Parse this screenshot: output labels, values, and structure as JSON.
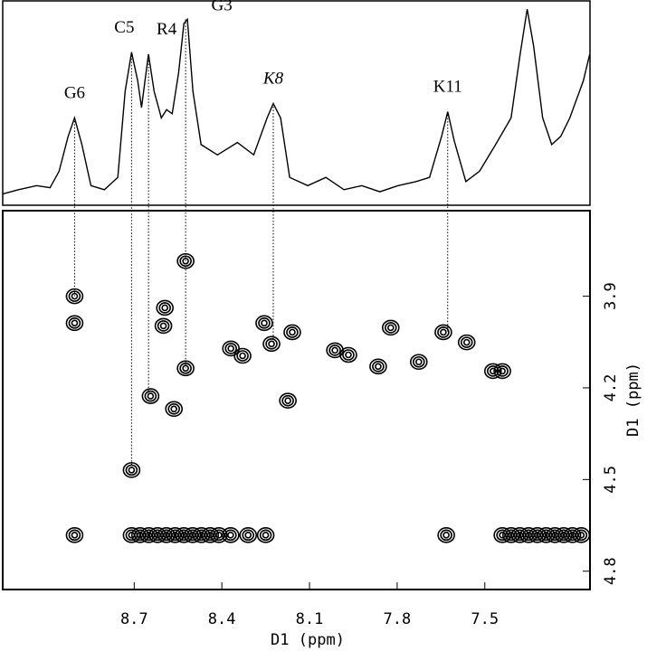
{
  "chart_data": [
    {
      "type": "line",
      "x": [
        9.149,
        9.096,
        9.034,
        8.988,
        8.957,
        8.926,
        8.904,
        8.879,
        8.848,
        8.802,
        8.756,
        8.731,
        8.709,
        8.688,
        8.675,
        8.663,
        8.651,
        8.632,
        8.607,
        8.589,
        8.57,
        8.548,
        8.53,
        8.518,
        8.499,
        8.471,
        8.415,
        8.347,
        8.291,
        8.245,
        8.224,
        8.199,
        8.168,
        8.106,
        8.044,
        7.982,
        7.921,
        7.859,
        7.797,
        7.735,
        7.689,
        7.648,
        7.627,
        7.605,
        7.565,
        7.518,
        7.463,
        7.41,
        7.379,
        7.355,
        7.333,
        7.302,
        7.271,
        7.24,
        7.209,
        7.163,
        7.141
      ],
      "values": [
        6,
        8,
        10,
        9,
        17,
        34,
        43,
        30,
        10,
        8,
        14,
        56,
        75,
        61,
        48,
        61,
        74,
        56,
        43,
        47,
        45,
        65,
        89,
        91,
        56,
        30,
        25,
        31,
        25,
        43,
        50,
        43,
        14,
        10,
        14,
        8,
        10,
        7,
        10,
        12,
        14,
        34,
        46,
        32,
        12,
        17,
        30,
        43,
        74,
        96,
        78,
        43,
        30,
        34,
        43,
        61,
        74
      ],
      "color": "#000000",
      "xlim": [
        9.15,
        7.14
      ],
      "ylim": [
        0,
        100
      ],
      "peak_labels": [
        {
          "label": "G6",
          "x": 8.904,
          "y": 3.9
        },
        {
          "label": "C5",
          "x": 8.709,
          "y": 4.469
        },
        {
          "label": "R4",
          "x": 8.651,
          "y": 4.227
        },
        {
          "label": "G3",
          "x": 8.524,
          "y": 4.136
        },
        {
          "label": "K8",
          "x": 8.224,
          "y": 4.056
        },
        {
          "label": "K11",
          "x": 7.627,
          "y": 4.018
        }
      ]
    },
    {
      "type": "contour",
      "x": [
        8.904,
        8.904,
        8.524,
        8.595,
        8.6,
        8.524,
        8.644,
        8.564,
        8.709,
        8.369,
        8.329,
        8.255,
        8.23,
        8.159,
        8.174,
        8.013,
        7.967,
        7.865,
        7.822,
        7.726,
        7.642,
        7.562,
        7.472,
        7.44,
        8.904,
        8.709,
        8.68,
        8.65,
        8.62,
        8.59,
        8.56,
        8.53,
        8.5,
        8.47,
        8.44,
        8.41,
        8.37,
        8.31,
        8.25,
        7.632,
        7.44,
        7.41,
        7.38,
        7.35,
        7.32,
        7.29,
        7.26,
        7.23,
        7.2,
        7.17
      ],
      "y": [
        3.9,
        3.988,
        3.785,
        3.938,
        3.997,
        4.136,
        4.227,
        4.269,
        4.469,
        4.071,
        4.095,
        3.988,
        4.056,
        4.018,
        4.242,
        4.077,
        4.092,
        4.13,
        4.003,
        4.115,
        4.018,
        4.051,
        4.145,
        4.145,
        4.682,
        4.682,
        4.682,
        4.682,
        4.682,
        4.682,
        4.682,
        4.682,
        4.682,
        4.682,
        4.682,
        4.682,
        4.682,
        4.682,
        4.682,
        4.682,
        4.682,
        4.682,
        4.682,
        4.682,
        4.682,
        4.682,
        4.682,
        4.682,
        4.682,
        4.682
      ],
      "xlim": [
        9.15,
        7.14
      ],
      "ylim": [
        3.62,
        4.86
      ],
      "xticks": [
        8.7,
        8.4,
        8.1,
        7.8,
        7.5
      ],
      "yticks": [
        3.9,
        4.2,
        4.5,
        4.8
      ],
      "x_label": "D1 (ppm)",
      "y_label": "D1 (ppm)"
    }
  ]
}
